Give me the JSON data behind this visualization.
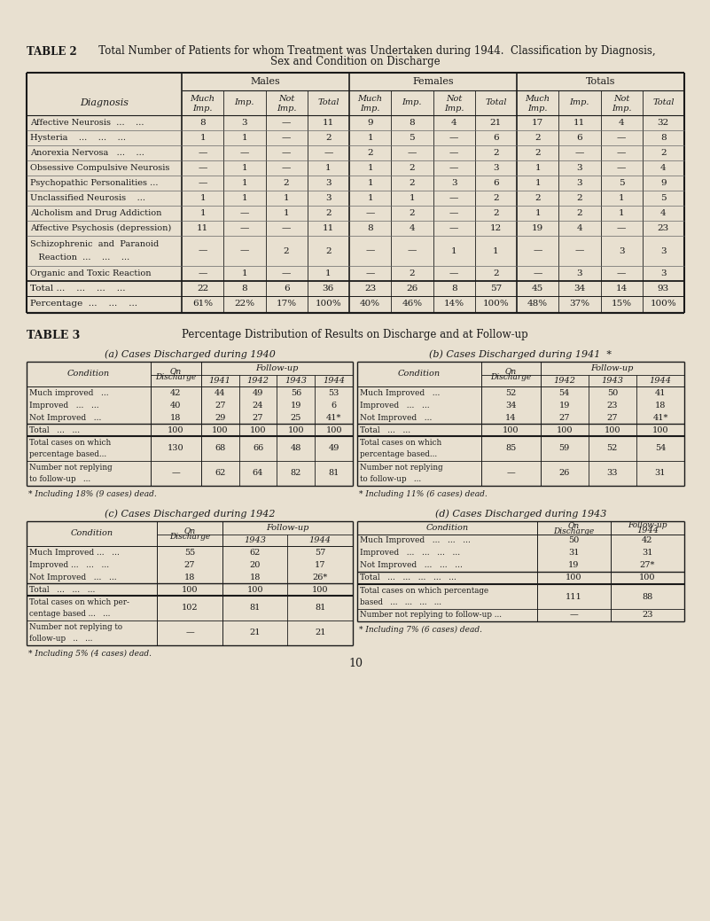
{
  "bg_color": "#e8e0d0",
  "page_number": "10",
  "table2": {
    "title_bold": "TABLE 2",
    "title_rest": "   Total Number of Patients for whom Treatment was Undertaken during 1944.  Classification by Diagnosis,",
    "title_line2": "Sex and Condition on Discharge",
    "col_groups": [
      "Males",
      "Females",
      "Totals"
    ],
    "col_headers": [
      "Much\nImp.",
      "Imp.",
      "Not\nImp.",
      "Total"
    ],
    "row_labels": [
      "Affective Neurosis  ...    ...",
      "Hysteria    ...    ...    ...",
      "Anorexia Nervosa   ...    ...",
      "Obsessive Compulsive Neurosis",
      "Psychopathic Personalities ...",
      "Unclassified Neurosis    ...",
      "Alcholism and Drug Addiction",
      "Affective Psychosis (depression)",
      "Schizophrenic  and  Paranoid",
      "   Reaction  ...    ...    ...",
      "Organic and Toxic Reaction"
    ],
    "row_is_continuation": [
      false,
      false,
      false,
      false,
      false,
      false,
      false,
      false,
      false,
      true,
      false
    ],
    "data": [
      [
        8,
        3,
        "—",
        11,
        9,
        8,
        4,
        21,
        17,
        11,
        4,
        32
      ],
      [
        1,
        1,
        "—",
        2,
        1,
        5,
        "—",
        6,
        2,
        6,
        "—",
        8
      ],
      [
        "—",
        "—",
        "—",
        "—",
        2,
        "—",
        "—",
        2,
        2,
        "—",
        "—",
        2
      ],
      [
        "—",
        1,
        "—",
        1,
        1,
        2,
        "—",
        3,
        1,
        3,
        "—",
        4
      ],
      [
        "—",
        1,
        2,
        3,
        1,
        2,
        3,
        6,
        1,
        3,
        5,
        9
      ],
      [
        1,
        1,
        1,
        3,
        1,
        1,
        "—",
        2,
        2,
        2,
        1,
        5
      ],
      [
        1,
        "—",
        1,
        2,
        "—",
        2,
        "—",
        2,
        1,
        2,
        1,
        4
      ],
      [
        11,
        "—",
        "—",
        11,
        8,
        4,
        "—",
        12,
        19,
        4,
        "—",
        23
      ],
      [
        "—",
        "—",
        2,
        2,
        "—",
        "—",
        1,
        1,
        "—",
        "—",
        3,
        3
      ],
      [
        "—",
        "—",
        2,
        2,
        "—",
        "—",
        1,
        1,
        "—",
        "—",
        3,
        3
      ],
      [
        "—",
        1,
        "—",
        1,
        "—",
        2,
        "—",
        2,
        "—",
        3,
        "—",
        3
      ]
    ],
    "total_row": [
      22,
      8,
      6,
      36,
      23,
      26,
      8,
      57,
      45,
      34,
      14,
      93
    ],
    "pct_row": [
      "61%",
      "22%",
      "17%",
      "100%",
      "40%",
      "46%",
      "14%",
      "100%",
      "48%",
      "37%",
      "15%",
      "100%"
    ]
  },
  "table3": {
    "title_bold": "TABLE 3",
    "title_text": "Percentage Distribution of Results on Discharge and at Follow-up",
    "subtables": [
      {
        "subtitle": "(a) Cases Discharged during 1940",
        "subtitle_style": "italic",
        "condition_col": "Condition",
        "on_discharge_col": "On\nDischarge",
        "followup_label": "Follow-up",
        "followup_years": [
          "1941",
          "1942",
          "1943",
          "1944"
        ],
        "rows": [
          [
            "Much improved   ...",
            42,
            44,
            49,
            56,
            53
          ],
          [
            "Improved   ...   ...",
            40,
            27,
            24,
            19,
            6
          ],
          [
            "Not Improved   ...",
            18,
            29,
            27,
            25,
            "41*"
          ]
        ],
        "total_row": [
          "Total   ...   ...",
          100,
          100,
          100,
          100,
          100
        ],
        "cases_row": [
          "Total cases on which\npercentage based...",
          130,
          68,
          66,
          48,
          49
        ],
        "not_replying_row": [
          "Number not replying\nto follow-up   ...",
          "—",
          62,
          64,
          82,
          81
        ],
        "footnote": "* Including 18% (9 cases) dead."
      },
      {
        "subtitle": "(b) Cases Discharged during 1941  *",
        "subtitle_style": "italic",
        "condition_col": "Condition",
        "on_discharge_col": "On\nDischarge",
        "followup_label": "Follow-up",
        "followup_years": [
          "1942",
          "1943",
          "1944"
        ],
        "rows": [
          [
            "Much Improved   ...",
            52,
            54,
            50,
            41
          ],
          [
            "Improved   ...   ...",
            34,
            19,
            23,
            18
          ],
          [
            "Not Improved   ...",
            14,
            27,
            27,
            "41*"
          ]
        ],
        "total_row": [
          "Total   ...   ...",
          100,
          100,
          100,
          100
        ],
        "cases_row": [
          "Total cases on which\npercentage based...",
          85,
          59,
          52,
          54
        ],
        "not_replying_row": [
          "Number not replying\nto follow-up   ...",
          "—",
          26,
          33,
          31
        ],
        "footnote": "* Including 11% (6 cases) dead."
      },
      {
        "subtitle": "(c) Cases Discharged during 1942",
        "subtitle_style": "italic",
        "condition_col": "Condition",
        "on_discharge_col": "On\nDischarge",
        "followup_label": "Follow-up",
        "followup_years": [
          "1943",
          "1944"
        ],
        "rows": [
          [
            "Much Improved ...   ...",
            55,
            62,
            57
          ],
          [
            "Improved ...   ...   ...",
            27,
            20,
            17
          ],
          [
            "Not Improved   ...   ...",
            18,
            18,
            "26*"
          ]
        ],
        "total_row": [
          "Total   ...   ...   ...",
          100,
          100,
          100
        ],
        "cases_row": [
          "Total cases on which per-\ncentage based ...   ...",
          102,
          81,
          81
        ],
        "not_replying_row": [
          "Number not replying to\nfollow-up   ..   ...",
          "—",
          21,
          21
        ],
        "footnote": "* Including 5% (4 cases) dead."
      },
      {
        "subtitle": "(d) Cases Discharged during 1943",
        "subtitle_style": "italic",
        "condition_col": "Condition",
        "on_discharge_col": "On\nDischarge",
        "followup_label": "Follow-up\n1944",
        "followup_years": [
          "1944"
        ],
        "rows": [
          [
            "Much Improved   ...   ...   ...",
            50,
            42
          ],
          [
            "Improved   ...   ...   ...   ...",
            31,
            31
          ],
          [
            "Not Improved   ...   ...   ...",
            19,
            "27*"
          ]
        ],
        "total_row": [
          "Total   ...   ...   ...   ...   ...",
          100,
          100
        ],
        "cases_row": [
          "Total cases on which percentage\nbased   ...   ...   ...   ...",
          111,
          88
        ],
        "not_replying_row": [
          "Number not replying to follow-up ...",
          "—",
          23
        ],
        "footnote": "* Including 7% (6 cases) dead."
      }
    ]
  }
}
